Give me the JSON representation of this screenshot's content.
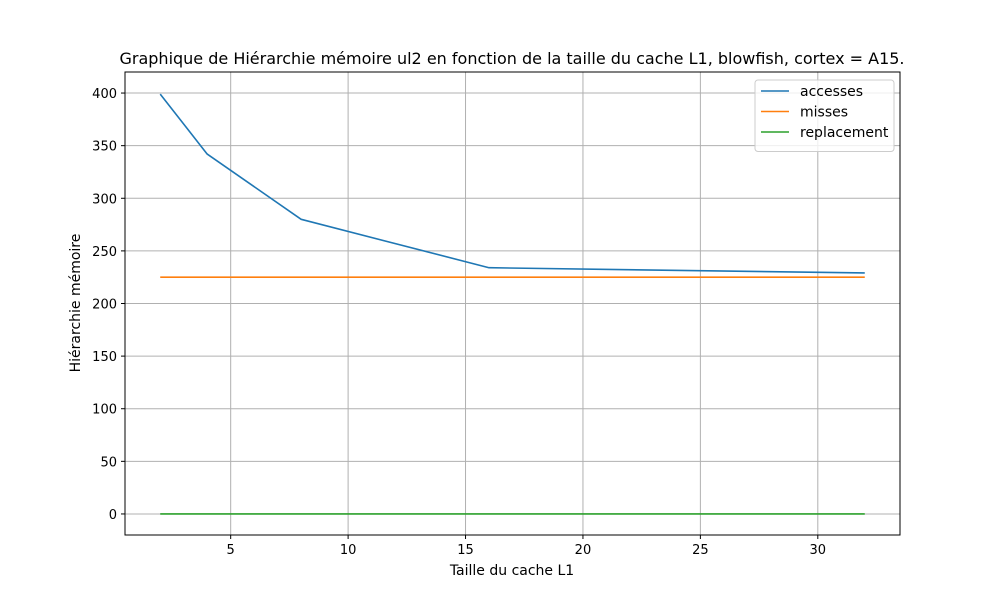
{
  "chart_data": {
    "type": "line",
    "title": "Graphique de Hiérarchie mémoire ul2 en fonction de la taille du cache L1, blowfish, cortex = A15.",
    "xlabel": "Taille du cache L1",
    "ylabel": "Hiérarchie mémoire",
    "xlim": [
      0.5,
      33.5
    ],
    "ylim": [
      -20,
      420
    ],
    "xticks": [
      5,
      10,
      15,
      20,
      25,
      30
    ],
    "yticks": [
      0,
      50,
      100,
      150,
      200,
      250,
      300,
      350,
      400
    ],
    "grid": true,
    "legend_position": "top-right",
    "x": [
      2,
      4,
      8,
      16,
      32
    ],
    "series": [
      {
        "name": "accesses",
        "color": "#1f77b4",
        "values": [
          399,
          342,
          280,
          234,
          229
        ]
      },
      {
        "name": "misses",
        "color": "#ff7f0e",
        "values": [
          225,
          225,
          225,
          225,
          225
        ]
      },
      {
        "name": "replacement",
        "color": "#2ca02c",
        "values": [
          0,
          0,
          0,
          0,
          0
        ]
      }
    ]
  }
}
